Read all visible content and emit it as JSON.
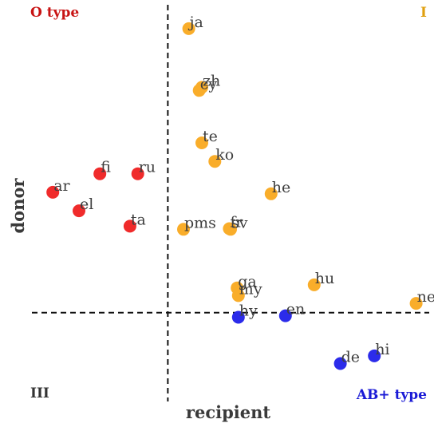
{
  "chart_data": {
    "type": "scatter",
    "title": "",
    "xlabel": "recipient",
    "ylabel": "donor",
    "xlim": [
      -0.52,
      1.0
    ],
    "ylim": [
      -0.28,
      1.0
    ],
    "grid": false,
    "quadrant_labels": {
      "top_left": "O type",
      "top_right": "I",
      "bottom_left": "III",
      "bottom_right": "AB+ type"
    },
    "colors": {
      "red": "#f02b2b",
      "orange": "#f9ad2a",
      "blue": "#2b2bea",
      "text": "#3f3f3f",
      "top_left": "#c81414",
      "top_right": "#e0a010",
      "bottom_left": "#333333",
      "bottom_right": "#1a1ad6"
    },
    "reference_lines": {
      "x": 0,
      "y": 0
    },
    "points": [
      {
        "label": "ja",
        "x": 0.08,
        "y": 0.92,
        "group": "orange"
      },
      {
        "label": "zh",
        "x": 0.13,
        "y": 0.73,
        "group": "orange"
      },
      {
        "label": "cy",
        "x": 0.12,
        "y": 0.72,
        "group": "orange"
      },
      {
        "label": "te",
        "x": 0.13,
        "y": 0.55,
        "group": "orange"
      },
      {
        "label": "ko",
        "x": 0.18,
        "y": 0.49,
        "group": "orange"
      },
      {
        "label": "he",
        "x": 0.395,
        "y": 0.385,
        "group": "orange"
      },
      {
        "label": "pms",
        "x": 0.06,
        "y": 0.27,
        "group": "orange"
      },
      {
        "label": "sv",
        "x": 0.24,
        "y": 0.27,
        "group": "orange"
      },
      {
        "label": "fr",
        "x": 0.235,
        "y": 0.272,
        "group": "orange"
      },
      {
        "label": "ga",
        "x": 0.265,
        "y": 0.08,
        "group": "orange"
      },
      {
        "label": "my",
        "x": 0.27,
        "y": 0.055,
        "group": "orange"
      },
      {
        "label": "hu",
        "x": 0.56,
        "y": 0.09,
        "group": "orange"
      },
      {
        "label": "ne",
        "x": 0.95,
        "y": 0.03,
        "group": "orange"
      },
      {
        "label": "fi",
        "x": -0.26,
        "y": 0.45,
        "group": "red"
      },
      {
        "label": "ru",
        "x": -0.115,
        "y": 0.45,
        "group": "red"
      },
      {
        "label": "ar",
        "x": -0.44,
        "y": 0.39,
        "group": "red"
      },
      {
        "label": "el",
        "x": -0.34,
        "y": 0.33,
        "group": "red"
      },
      {
        "label": "ta",
        "x": -0.145,
        "y": 0.28,
        "group": "red"
      },
      {
        "label": "hy",
        "x": 0.27,
        "y": -0.015,
        "group": "blue"
      },
      {
        "label": "en",
        "x": 0.45,
        "y": -0.01,
        "group": "blue"
      },
      {
        "label": "de",
        "x": 0.66,
        "y": -0.165,
        "group": "blue"
      },
      {
        "label": "hi",
        "x": 0.79,
        "y": -0.14,
        "group": "blue"
      }
    ]
  }
}
